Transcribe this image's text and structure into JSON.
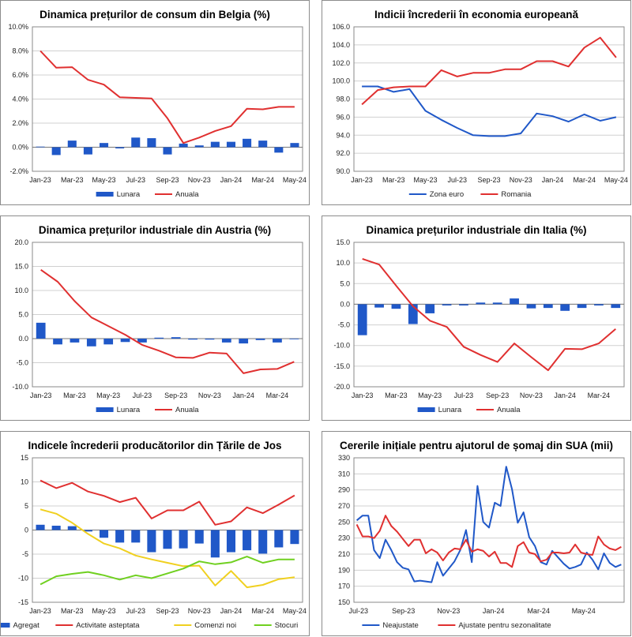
{
  "colors": {
    "blue": "#2058c8",
    "red": "#e03030",
    "yellow": "#f0d020",
    "green": "#70d020",
    "grid": "#d0d0d0",
    "axis": "#888888"
  },
  "chart_data": [
    {
      "type": "bar+line",
      "title": "Dinamica prețurilor de consum din Belgia (%)",
      "x_ticks": [
        "Jan-23",
        "Mar-23",
        "May-23",
        "Jul-23",
        "Sep-23",
        "Nov-23",
        "Jan-24",
        "Mar-24",
        "May-24"
      ],
      "ylim": [
        -2,
        10
      ],
      "y_ticks": [
        "-2.0%",
        "0.0%",
        "2.0%",
        "4.0%",
        "6.0%",
        "8.0%",
        "10.0%"
      ],
      "y_tick_values": [
        -2,
        0,
        2,
        4,
        6,
        8,
        10
      ],
      "series": [
        {
          "name": "Lunara",
          "kind": "bar",
          "color": "#2058c8",
          "values": [
            0.05,
            -0.65,
            0.55,
            -0.6,
            0.35,
            -0.1,
            0.8,
            0.75,
            -0.6,
            0.3,
            0.15,
            0.45,
            0.45,
            0.7,
            0.55,
            -0.45,
            0.35
          ]
        },
        {
          "name": "Anuala",
          "kind": "line",
          "color": "#e03030",
          "values": [
            8.0,
            6.6,
            6.65,
            5.6,
            5.2,
            4.15,
            4.1,
            4.05,
            2.4,
            0.35,
            0.8,
            1.35,
            1.75,
            3.2,
            3.15,
            3.35,
            3.35
          ]
        }
      ]
    },
    {
      "type": "line",
      "title": "Indicii încrederii în economia europeană",
      "x_ticks": [
        "Jan-23",
        "Mar-23",
        "May-23",
        "Jul-23",
        "Sep-23",
        "Nov-23",
        "Jan-24",
        "Mar-24",
        "May-24"
      ],
      "ylim": [
        90,
        106
      ],
      "y_ticks": [
        "90.0",
        "92.0",
        "94.0",
        "96.0",
        "98.0",
        "100.0",
        "102.0",
        "104.0",
        "106.0"
      ],
      "y_tick_values": [
        90,
        92,
        94,
        96,
        98,
        100,
        102,
        104,
        106
      ],
      "series": [
        {
          "name": "Zona euro",
          "kind": "line",
          "color": "#2058c8",
          "values": [
            99.4,
            99.4,
            98.8,
            99.1,
            96.7,
            95.7,
            94.8,
            94.0,
            93.9,
            93.9,
            94.2,
            96.4,
            96.1,
            95.5,
            96.3,
            95.6,
            96.0
          ]
        },
        {
          "name": "Romania",
          "kind": "line",
          "color": "#e03030",
          "values": [
            97.4,
            99.0,
            99.3,
            99.4,
            99.4,
            101.2,
            100.5,
            100.9,
            100.9,
            101.3,
            101.3,
            102.2,
            102.2,
            101.6,
            103.7,
            104.8,
            102.6
          ]
        }
      ]
    },
    {
      "type": "bar+line",
      "title": "Dinamica prețurilor industriale din Austria (%)",
      "x_ticks": [
        "Jan-23",
        "Mar-23",
        "May-23",
        "Jul-23",
        "Sep-23",
        "Nov-23",
        "Jan-24",
        "Mar-24"
      ],
      "ylim": [
        -10,
        20
      ],
      "y_ticks": [
        "-10.0",
        "-5.0",
        "0.0",
        "5.0",
        "10.0",
        "15.0",
        "20.0"
      ],
      "y_tick_values": [
        -10,
        -5,
        0,
        5,
        10,
        15,
        20
      ],
      "series": [
        {
          "name": "Lunara",
          "kind": "bar",
          "color": "#2058c8",
          "values": [
            3.3,
            -1.2,
            -0.8,
            -1.6,
            -1.2,
            -0.7,
            -0.8,
            0.2,
            0.3,
            -0.2,
            -0.2,
            -0.8,
            -1.0,
            -0.3,
            -0.8,
            -0.1
          ]
        },
        {
          "name": "Anuala",
          "kind": "line",
          "color": "#e03030",
          "values": [
            14.3,
            11.8,
            7.8,
            4.4,
            2.6,
            0.8,
            -1.3,
            -2.5,
            -3.9,
            -4.0,
            -2.9,
            -3.1,
            -7.2,
            -6.4,
            -6.3,
            -4.8
          ]
        }
      ]
    },
    {
      "type": "bar+line",
      "title": "Dinamica prețurilor industriale din Italia (%)",
      "x_ticks": [
        "Jan-23",
        "Mar-23",
        "May-23",
        "Jul-23",
        "Sep-23",
        "Nov-23",
        "Jan-24",
        "Mar-24"
      ],
      "ylim": [
        -20,
        15
      ],
      "y_ticks": [
        "-20.0",
        "-15.0",
        "-10.0",
        "-5.0",
        "0.0",
        "5.0",
        "10.0",
        "15.0"
      ],
      "y_tick_values": [
        -20,
        -15,
        -10,
        -5,
        0,
        5,
        10,
        15
      ],
      "series": [
        {
          "name": "Lunara",
          "kind": "bar",
          "color": "#2058c8",
          "values": [
            -7.5,
            -0.8,
            -1.1,
            -4.8,
            -2.2,
            -0.3,
            -0.3,
            0.4,
            0.4,
            1.4,
            -1.0,
            -0.9,
            -1.6,
            -0.9,
            -0.3,
            -0.9
          ]
        },
        {
          "name": "Anuala",
          "kind": "line",
          "color": "#e03030",
          "values": [
            11.0,
            9.6,
            4.5,
            -0.5,
            -4.0,
            -5.5,
            -10.3,
            -12.3,
            -14.0,
            -9.5,
            -12.8,
            -16.0,
            -10.8,
            -10.9,
            -9.5,
            -6.0
          ]
        }
      ]
    },
    {
      "type": "bar+line",
      "title": "Indicele încrederii producătorilor din Țările de Jos",
      "x_ticks": [
        "Jan-23",
        "Mar-23",
        "May-23",
        "Jul-23",
        "Sep-23",
        "Nov-23",
        "Jan-24",
        "Mar-24",
        "May-24"
      ],
      "ylim": [
        -15,
        15
      ],
      "y_ticks": [
        "-15",
        "-10",
        "-5",
        "0",
        "5",
        "10",
        "15"
      ],
      "y_tick_values": [
        -15,
        -10,
        -5,
        0,
        5,
        10,
        15
      ],
      "series": [
        {
          "name": "Agregat",
          "kind": "bar",
          "color": "#2058c8",
          "values": [
            1.1,
            0.9,
            0.8,
            -0.3,
            -1.6,
            -2.6,
            -2.6,
            -4.6,
            -3.9,
            -3.8,
            -2.8,
            -5.7,
            -4.6,
            -4.2,
            -4.9,
            -3.6,
            -2.9
          ]
        },
        {
          "name": "Activitate asteptata",
          "kind": "line",
          "color": "#e03030",
          "values": [
            10.3,
            8.7,
            9.8,
            8.0,
            7.1,
            5.8,
            6.7,
            2.4,
            4.1,
            4.1,
            5.9,
            1.1,
            1.8,
            4.7,
            3.5,
            5.3,
            7.2
          ]
        },
        {
          "name": "Comenzi noi",
          "kind": "line",
          "color": "#f0d020",
          "values": [
            4.3,
            3.4,
            1.5,
            -0.8,
            -2.8,
            -3.8,
            -5.3,
            -6.1,
            -6.8,
            -7.5,
            -7.4,
            -11.5,
            -8.5,
            -11.9,
            -11.4,
            -10.2,
            -9.8
          ]
        },
        {
          "name": "Stocuri",
          "kind": "line",
          "color": "#70d020",
          "values": [
            -11.3,
            -9.6,
            -9.1,
            -8.7,
            -9.4,
            -10.3,
            -9.4,
            -10.0,
            -9.0,
            -8.0,
            -6.5,
            -7.1,
            -6.7,
            -5.5,
            -6.8,
            -6.1,
            -6.1
          ]
        }
      ]
    },
    {
      "type": "line",
      "title": "Cererile inițiale pentru ajutorul de șomaj din SUA (mii)",
      "x_ticks": [
        "Jul-23",
        "Sep-23",
        "Nov-23",
        "Jan-24",
        "Mar-24",
        "May-24"
      ],
      "ylim": [
        150,
        330
      ],
      "y_ticks": [
        "150",
        "170",
        "190",
        "210",
        "230",
        "250",
        "270",
        "290",
        "310",
        "330"
      ],
      "y_tick_values": [
        150,
        170,
        190,
        210,
        230,
        250,
        270,
        290,
        310,
        330
      ],
      "series": [
        {
          "name": "Neajustate",
          "kind": "line",
          "color": "#2058c8",
          "values": [
            252,
            258,
            258,
            215,
            205,
            228,
            215,
            200,
            193,
            191,
            176,
            177,
            176,
            175,
            200,
            183,
            192,
            201,
            215,
            240,
            200,
            295,
            250,
            243,
            274,
            270,
            319,
            291,
            249,
            262,
            231,
            220,
            200,
            197,
            214,
            206,
            198,
            192,
            194,
            197,
            212,
            203,
            191,
            211,
            199,
            194,
            197
          ]
        },
        {
          "name": "Ajustate pentru sezonalitate",
          "kind": "line",
          "color": "#e03030",
          "values": [
            247,
            232,
            232,
            230,
            239,
            258,
            245,
            238,
            229,
            220,
            228,
            228,
            211,
            216,
            212,
            202,
            212,
            217,
            216,
            228,
            213,
            216,
            214,
            207,
            213,
            199,
            199,
            194,
            220,
            225,
            212,
            210,
            201,
            203,
            212,
            212,
            211,
            212,
            222,
            212,
            210,
            209,
            232,
            222,
            217,
            215,
            219
          ]
        }
      ]
    }
  ]
}
